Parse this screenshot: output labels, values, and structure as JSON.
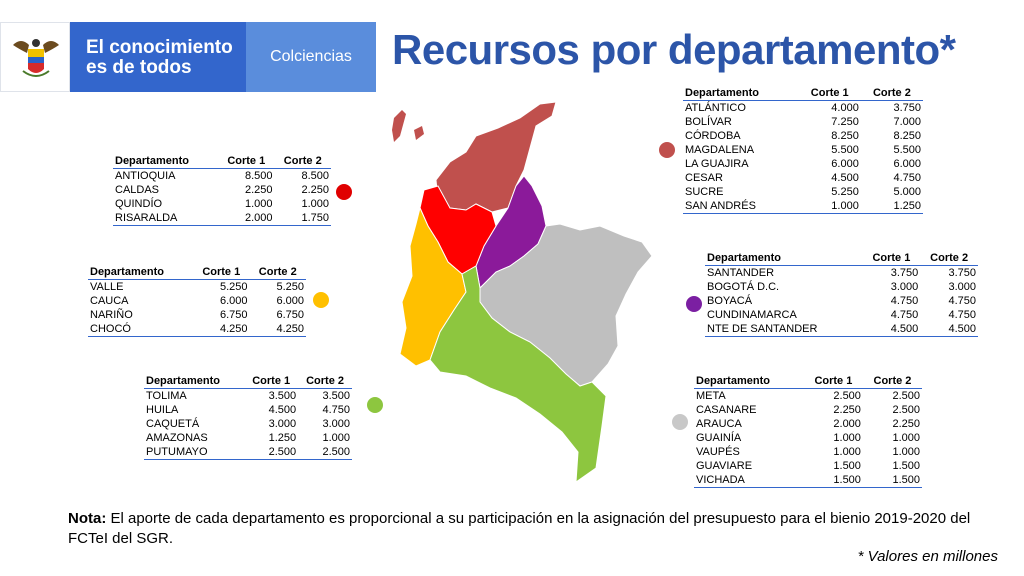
{
  "header": {
    "brand_line1": "El conocimiento",
    "brand_line2": "es de todos",
    "org": "Colciencias",
    "title": "Recursos por departamento*"
  },
  "columns": {
    "dept": "Departamento",
    "c1": "Corte 1",
    "c2": "Corte 2"
  },
  "groups": [
    {
      "id": "red",
      "color": "#e00000",
      "rows": [
        {
          "name": "ANTIOQUIA",
          "c1": "8.500",
          "c2": "8.500"
        },
        {
          "name": "CALDAS",
          "c1": "2.250",
          "c2": "2.250"
        },
        {
          "name": "QUINDÍO",
          "c1": "1.000",
          "c2": "1.000"
        },
        {
          "name": "RISARALDA",
          "c1": "2.000",
          "c2": "1.750"
        }
      ]
    },
    {
      "id": "yellow",
      "color": "#ffc000",
      "rows": [
        {
          "name": "VALLE",
          "c1": "5.250",
          "c2": "5.250"
        },
        {
          "name": "CAUCA",
          "c1": "6.000",
          "c2": "6.000"
        },
        {
          "name": "NARIÑO",
          "c1": "6.750",
          "c2": "6.750"
        },
        {
          "name": "CHOCÓ",
          "c1": "4.250",
          "c2": "4.250"
        }
      ]
    },
    {
      "id": "green",
      "color": "#8dc63f",
      "rows": [
        {
          "name": "TOLIMA",
          "c1": "3.500",
          "c2": "3.500"
        },
        {
          "name": "HUILA",
          "c1": "4.500",
          "c2": "4.750"
        },
        {
          "name": "CAQUETÁ",
          "c1": "3.000",
          "c2": "3.000"
        },
        {
          "name": "AMAZONAS",
          "c1": "1.250",
          "c2": "1.000"
        },
        {
          "name": "PUTUMAYO",
          "c1": "2.500",
          "c2": "2.500"
        }
      ]
    },
    {
      "id": "brown",
      "color": "#c0504d",
      "rows": [
        {
          "name": "ATLÁNTICO",
          "c1": "4.000",
          "c2": "3.750"
        },
        {
          "name": "BOLÍVAR",
          "c1": "7.250",
          "c2": "7.000"
        },
        {
          "name": "CÓRDOBA",
          "c1": "8.250",
          "c2": "8.250"
        },
        {
          "name": "MAGDALENA",
          "c1": "5.500",
          "c2": "5.500"
        },
        {
          "name": "LA GUAJIRA",
          "c1": "6.000",
          "c2": "6.000"
        },
        {
          "name": "CESAR",
          "c1": "4.500",
          "c2": "4.750"
        },
        {
          "name": "SUCRE",
          "c1": "5.250",
          "c2": "5.000"
        },
        {
          "name": "SAN ANDRÉS",
          "c1": "1.000",
          "c2": "1.250"
        }
      ]
    },
    {
      "id": "purple",
      "color": "#7b1fa2",
      "rows": [
        {
          "name": "SANTANDER",
          "c1": "3.750",
          "c2": "3.750"
        },
        {
          "name": "BOGOTÁ D.C.",
          "c1": "3.000",
          "c2": "3.000"
        },
        {
          "name": "BOYACÁ",
          "c1": "4.750",
          "c2": "4.750"
        },
        {
          "name": "CUNDINAMARCA",
          "c1": "4.750",
          "c2": "4.750"
        },
        {
          "name": "NTE DE SANTANDER",
          "c1": "4.500",
          "c2": "4.500"
        }
      ]
    },
    {
      "id": "gray",
      "color": "#c8c8c8",
      "rows": [
        {
          "name": "META",
          "c1": "2.500",
          "c2": "2.500"
        },
        {
          "name": "CASANARE",
          "c1": "2.250",
          "c2": "2.500"
        },
        {
          "name": "ARAUCA",
          "c1": "2.000",
          "c2": "2.250"
        },
        {
          "name": "GUAINÍA",
          "c1": "1.000",
          "c2": "1.000"
        },
        {
          "name": "VAUPÉS",
          "c1": "1.000",
          "c2": "1.000"
        },
        {
          "name": "GUAVIARE",
          "c1": "1.500",
          "c2": "1.500"
        },
        {
          "name": "VICHADA",
          "c1": "1.500",
          "c2": "1.500"
        }
      ]
    }
  ],
  "note": {
    "label": "Nota:",
    "text": " El aporte de cada departamento es proporcional a su participación en la asignación del presupuesto para el bienio 2019-2020 del FCTeI del SGR."
  },
  "footnote": "* Valores en millones"
}
